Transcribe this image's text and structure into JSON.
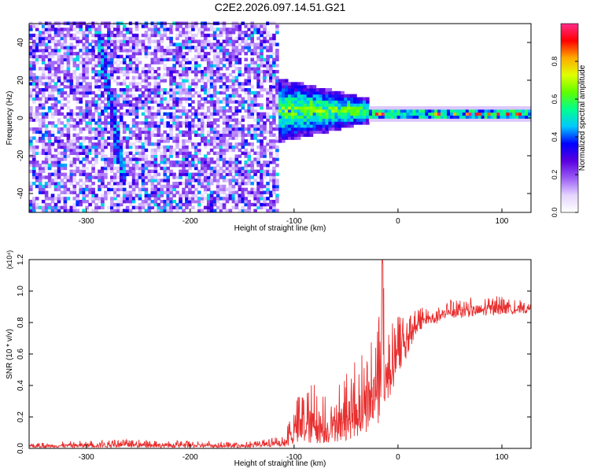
{
  "title": "C2E2.2026.097.14.51.G21",
  "chart_data": [
    {
      "type": "heatmap",
      "xlabel": "Height of straight line (km)",
      "ylabel": "Frequency (Hz)",
      "xlim": [
        -355,
        128
      ],
      "ylim": [
        -50,
        50
      ],
      "xticks": [
        -300,
        -200,
        -100,
        0,
        100
      ],
      "yticks": [
        -40,
        -20,
        0,
        20,
        40
      ],
      "colorbar": {
        "label": "Normalized spectral amplitude",
        "range": [
          0.0,
          1.0
        ],
        "ticks": [
          0.0,
          0.2,
          0.4,
          0.6,
          0.8
        ],
        "colormap": [
          "#ffffff",
          "#e4d4ff",
          "#9b5cf5",
          "#5a00e0",
          "#0000ff",
          "#00c8ff",
          "#00ff90",
          "#60ff00",
          "#e0ff00",
          "#ffaa00",
          "#ff0000",
          "#ff2a8a"
        ]
      },
      "features": {
        "noise_region_x": [
          -355,
          -115
        ],
        "tilted_streak": {
          "x_start": -290,
          "y_start": 45,
          "x_end": -265,
          "y_end": -35
        },
        "transition_band_x": [
          -125,
          -30
        ],
        "steady_line": {
          "x_range": [
            -20,
            128
          ],
          "frequency": 1
        }
      },
      "grid": false
    },
    {
      "type": "line",
      "xlabel": "Height of straight line (km)",
      "ylabel": "SNR (10 * v/v)",
      "y_scale_label": "(x10⁴)",
      "xlim": [
        -355,
        128
      ],
      "ylim": [
        0,
        1.2
      ],
      "xticks": [
        -300,
        -200,
        -100,
        0,
        100
      ],
      "yticks": [
        0.0,
        0.2,
        0.4,
        0.6,
        0.8,
        1.0,
        1.2
      ],
      "color": "#e83030",
      "envelope": [
        {
          "x": -355,
          "low": 0.005,
          "high": 0.03
        },
        {
          "x": -280,
          "low": 0.005,
          "high": 0.06
        },
        {
          "x": -150,
          "low": 0.005,
          "high": 0.04
        },
        {
          "x": -110,
          "low": 0.01,
          "high": 0.08
        },
        {
          "x": -95,
          "low": 0.02,
          "high": 0.35
        },
        {
          "x": -80,
          "low": 0.03,
          "high": 0.42
        },
        {
          "x": -65,
          "low": 0.03,
          "high": 0.3
        },
        {
          "x": -50,
          "low": 0.05,
          "high": 0.5
        },
        {
          "x": -35,
          "low": 0.08,
          "high": 0.6
        },
        {
          "x": -20,
          "low": 0.15,
          "high": 0.8
        },
        {
          "x": -15,
          "low": 0.2,
          "high": 1.22
        },
        {
          "x": -10,
          "low": 0.3,
          "high": 0.75
        },
        {
          "x": 0,
          "low": 0.45,
          "high": 0.85
        },
        {
          "x": 20,
          "low": 0.75,
          "high": 0.9
        },
        {
          "x": 50,
          "low": 0.82,
          "high": 0.95
        },
        {
          "x": 95,
          "low": 0.85,
          "high": 0.97
        },
        {
          "x": 128,
          "low": 0.86,
          "high": 0.93
        }
      ],
      "grid": false
    }
  ]
}
